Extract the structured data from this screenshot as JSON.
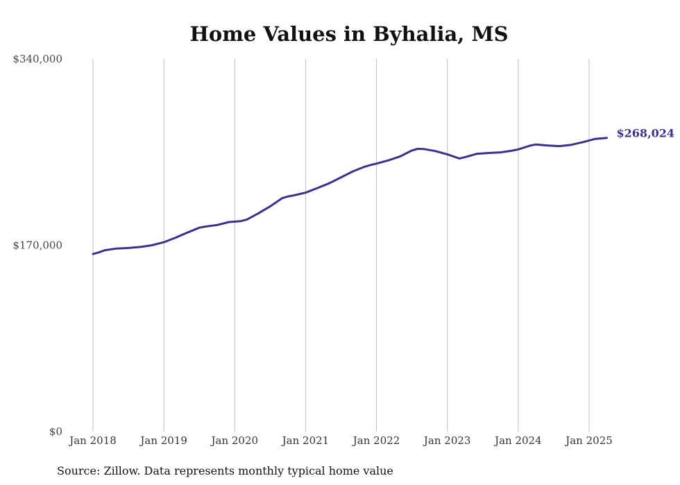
{
  "chart_data": {
    "type": "line",
    "title": "Home Values in Byhalia, MS",
    "source": "Source: Zillow. Data represents monthly typical home value",
    "ylim": [
      0,
      340000
    ],
    "yticks": [
      {
        "value": 0,
        "label": "$0"
      },
      {
        "value": 170000,
        "label": "$170,000"
      },
      {
        "value": 340000,
        "label": "$340,000"
      }
    ],
    "xticks": [
      {
        "value": 2018,
        "label": "Jan 2018"
      },
      {
        "value": 2019,
        "label": "Jan 2019"
      },
      {
        "value": 2020,
        "label": "Jan 2020"
      },
      {
        "value": 2021,
        "label": "Jan 2021"
      },
      {
        "value": 2022,
        "label": "Jan 2022"
      },
      {
        "value": 2023,
        "label": "Jan 2023"
      },
      {
        "value": 2024,
        "label": "Jan 2024"
      },
      {
        "value": 2025,
        "label": "Jan 2025"
      }
    ],
    "grid": "vertical",
    "line_color": "#3a318c",
    "end_label": "$268,024",
    "series": [
      {
        "x": [
          2018.0,
          2018.08,
          2018.17,
          2018.33,
          2018.5,
          2018.67,
          2018.83,
          2019.0,
          2019.17,
          2019.33,
          2019.5,
          2019.58,
          2019.75,
          2019.92,
          2020.08,
          2020.17,
          2020.33,
          2020.5,
          2020.67,
          2020.75,
          2020.83,
          2021.0,
          2021.17,
          2021.33,
          2021.5,
          2021.67,
          2021.83,
          2021.92,
          2022.0,
          2022.17,
          2022.33,
          2022.5,
          2022.58,
          2022.67,
          2022.83,
          2023.0,
          2023.17,
          2023.25,
          2023.42,
          2023.58,
          2023.75,
          2023.92,
          2024.0,
          2024.17,
          2024.25,
          2024.42,
          2024.58,
          2024.75,
          2024.92,
          2025.08,
          2025.25
        ],
        "y": [
          162000,
          163500,
          165500,
          167000,
          167500,
          168500,
          170000,
          172800,
          177000,
          181500,
          186000,
          187000,
          188500,
          191200,
          192000,
          193500,
          199000,
          205500,
          213000,
          214500,
          215500,
          218000,
          222300,
          226500,
          232000,
          237500,
          241600,
          243300,
          244500,
          247500,
          251000,
          256500,
          258000,
          257800,
          256000,
          253000,
          249200,
          250500,
          253500,
          254200,
          254800,
          256400,
          257500,
          261000,
          262000,
          261000,
          260500,
          261700,
          264200,
          267000,
          268024
        ]
      }
    ]
  }
}
